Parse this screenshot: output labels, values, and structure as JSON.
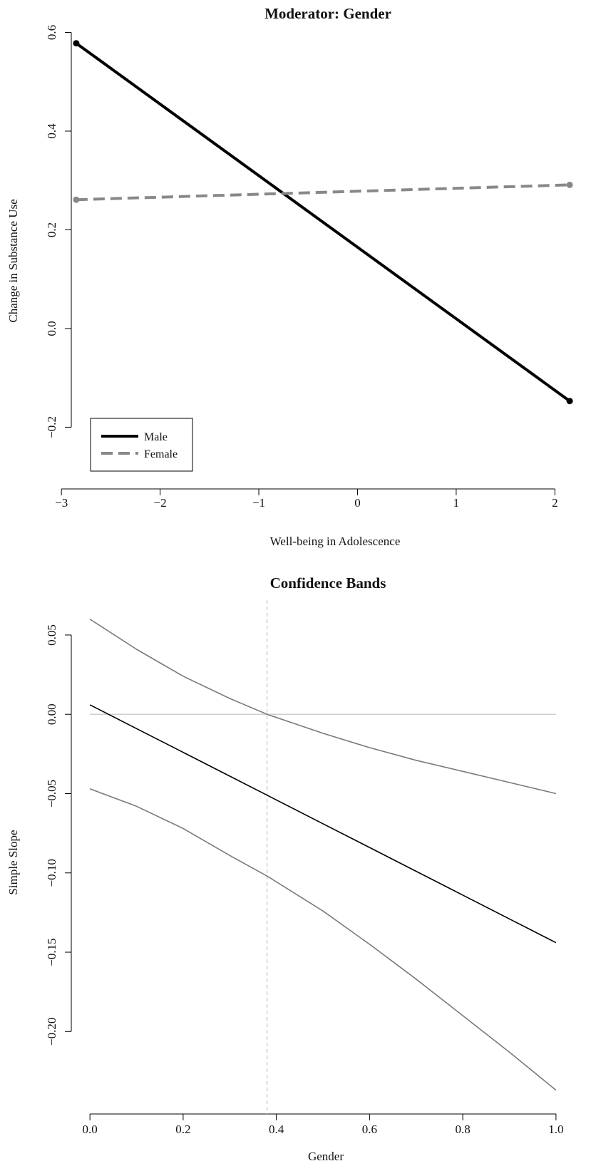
{
  "chart_data": [
    {
      "type": "line",
      "title": "Moderator: Gender",
      "xlabel": "Well-being in Adolescence",
      "ylabel": "Change in Substance Use",
      "xlim": [
        -2.9,
        2.2
      ],
      "ylim": [
        -0.325,
        0.605
      ],
      "xticks": [
        -3,
        -2,
        -1,
        0,
        1,
        2
      ],
      "yticks": [
        -0.2,
        0.0,
        0.2,
        0.4,
        0.6
      ],
      "xtick_labels": [
        "−3",
        "−2",
        "−1",
        "0",
        "1",
        "2"
      ],
      "ytick_labels": [
        "−0.2",
        "0.0",
        "0.2",
        "0.4",
        "0.6"
      ],
      "legend": {
        "position": "bottom-left",
        "entries": [
          "Male",
          "Female"
        ]
      },
      "series": [
        {
          "name": "Male",
          "x": [
            -2.85,
            2.15
          ],
          "y": [
            0.578,
            -0.147
          ],
          "color": "#000000",
          "dash": "solid"
        },
        {
          "name": "Female",
          "x": [
            -2.85,
            2.15
          ],
          "y": [
            0.261,
            0.291
          ],
          "color": "#888888",
          "dash": "dashed"
        }
      ]
    },
    {
      "type": "line",
      "title": "Confidence Bands",
      "xlabel": "Gender",
      "ylabel": "Simple Slope",
      "xlim": [
        -0.04,
        1.04
      ],
      "ylim": [
        -0.252,
        0.072
      ],
      "xticks": [
        0.0,
        0.2,
        0.4,
        0.6,
        0.8,
        1.0
      ],
      "yticks": [
        -0.2,
        -0.15,
        -0.1,
        -0.05,
        0.0,
        0.05
      ],
      "xtick_labels": [
        "0.0",
        "0.2",
        "0.4",
        "0.6",
        "0.8",
        "1.0"
      ],
      "ytick_labels": [
        "−0.20",
        "−0.15",
        "−0.10",
        "−0.05",
        "0.00",
        "0.05"
      ],
      "reference_lines": {
        "horizontal_y": 0.0,
        "vertical_x": 0.38
      },
      "series": [
        {
          "x": [
            0,
            0.1,
            0.2,
            0.3,
            0.38,
            0.5,
            0.6,
            0.7,
            0.8,
            0.9,
            1.0
          ],
          "y": [
            0.06,
            0.041,
            0.024,
            0.01,
            0.0,
            -0.012,
            -0.021,
            -0.029,
            -0.036,
            -0.043,
            -0.05
          ],
          "color": "#7a7a7a",
          "role": "upper"
        },
        {
          "x": [
            0,
            0.1,
            0.2,
            0.3,
            0.38,
            0.5,
            0.6,
            0.7,
            0.8,
            0.9,
            1.0
          ],
          "y": [
            0.006,
            -0.009,
            -0.024,
            -0.039,
            -0.051,
            -0.069,
            -0.084,
            -0.099,
            -0.114,
            -0.129,
            -0.144
          ],
          "color": "#000000",
          "role": "estimate"
        },
        {
          "x": [
            0,
            0.1,
            0.2,
            0.3,
            0.38,
            0.5,
            0.6,
            0.7,
            0.8,
            0.9,
            1.0
          ],
          "y": [
            -0.047,
            -0.058,
            -0.072,
            -0.089,
            -0.102,
            -0.124,
            -0.145,
            -0.167,
            -0.19,
            -0.213,
            -0.237
          ],
          "color": "#7a7a7a",
          "role": "lower"
        }
      ]
    }
  ]
}
